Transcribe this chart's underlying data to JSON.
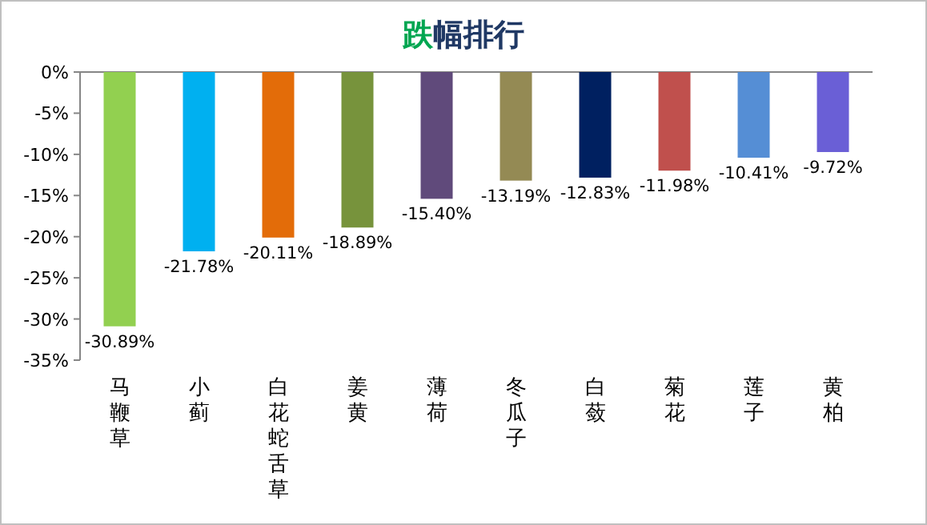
{
  "chart_data": {
    "type": "bar",
    "title": "跌幅排行",
    "categories": [
      "马鞭草",
      "小蓟",
      "白花蛇舌草",
      "姜黄",
      "薄荷",
      "冬瓜子",
      "白蔹",
      "菊花",
      "莲子",
      "黄柏"
    ],
    "values": [
      -30.89,
      -21.78,
      -20.11,
      -18.89,
      -15.4,
      -13.19,
      -12.83,
      -11.98,
      -10.41,
      -9.72
    ],
    "value_labels": [
      "-30.89%",
      "-21.78%",
      "-20.11%",
      "-18.89%",
      "-15.40%",
      "-13.19%",
      "-12.83%",
      "-11.98%",
      "-10.41%",
      "-9.72%"
    ],
    "colors": [
      "#92d050",
      "#00b0f0",
      "#e36c09",
      "#77933c",
      "#604a7b",
      "#948a54",
      "#002060",
      "#c0504d",
      "#558ed5",
      "#6a5fd6"
    ],
    "ylim": [
      -35,
      0
    ],
    "yticks": [
      {
        "value": 0,
        "label": "0%"
      },
      {
        "value": -5,
        "label": "-5%"
      },
      {
        "value": -10,
        "label": "-10%"
      },
      {
        "value": -15,
        "label": "-15%"
      },
      {
        "value": -20,
        "label": "-20%"
      },
      {
        "value": -25,
        "label": "-25%"
      },
      {
        "value": -30,
        "label": "-30%"
      },
      {
        "value": -35,
        "label": "-35%"
      }
    ],
    "grid": false
  }
}
